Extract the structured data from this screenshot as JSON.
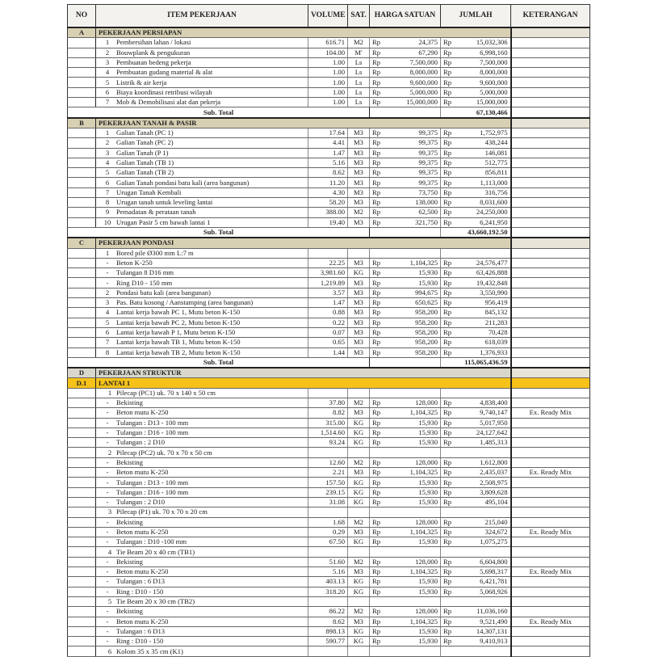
{
  "columns": {
    "no": "NO",
    "item": "ITEM PEKERJAAN",
    "volume": "VOLUME",
    "sat": "SAT.",
    "harga": "HARGA SATUAN",
    "jumlah": "JUMLAH",
    "ket": "KETERANGAN"
  },
  "currency": "Rp",
  "subtotal_label": "Sub. Total",
  "colors": {
    "section": "#d8d0b3",
    "subsection": "#f6c21a"
  },
  "rows": [
    {
      "type": "section",
      "no": "A",
      "item": "PEKERJAAN PERSIAPAN"
    },
    {
      "type": "item",
      "no": "1",
      "item": "Pembersihan lahan / lokasi",
      "volume": "616.71",
      "sat": "M2",
      "harga": "24,375",
      "jumlah": "15,032,306"
    },
    {
      "type": "item",
      "no": "2",
      "item": "Bouwplank & pengukuran",
      "volume": "104.00",
      "sat": "M'",
      "harga": "67,290",
      "jumlah": "6,998,160"
    },
    {
      "type": "item",
      "no": "3",
      "item": "Pembuatan bedeng pekerja",
      "volume": "1.00",
      "sat": "Ls",
      "harga": "7,500,000",
      "jumlah": "7,500,000"
    },
    {
      "type": "item",
      "no": "4",
      "item": "Pembuatan gudang material & alat",
      "volume": "1.00",
      "sat": "Ls",
      "harga": "8,000,000",
      "jumlah": "8,000,000"
    },
    {
      "type": "item",
      "no": "5",
      "item": "Listrik & air kerja",
      "volume": "1.00",
      "sat": "Ls",
      "harga": "9,600,000",
      "jumlah": "9,600,000"
    },
    {
      "type": "item",
      "no": "6",
      "item": "Biaya koordinasi retribusi wilayah",
      "volume": "1.00",
      "sat": "Ls",
      "harga": "5,000,000",
      "jumlah": "5,000,000"
    },
    {
      "type": "item",
      "no": "7",
      "item": "Mob & Demobilisasi alat dan pekerja",
      "volume": "1.00",
      "sat": "Ls",
      "harga": "15,000,000",
      "jumlah": "15,000,000"
    },
    {
      "type": "subtotal",
      "jumlah": "67,130,466"
    },
    {
      "type": "section",
      "no": "B",
      "item": "PEKERJAAN TANAH & PASIR"
    },
    {
      "type": "item",
      "no": "1",
      "item": "Galian Tanah (PC 1)",
      "volume": "17.64",
      "sat": "M3",
      "harga": "99,375",
      "jumlah": "1,752,975"
    },
    {
      "type": "item",
      "no": "2",
      "item": "Galian Tanah (PC 2)",
      "volume": "4.41",
      "sat": "M3",
      "harga": "99,375",
      "jumlah": "438,244"
    },
    {
      "type": "item",
      "no": "3",
      "item": "Galian Tanah (P 1)",
      "volume": "1.47",
      "sat": "M3",
      "harga": "99,375",
      "jumlah": "146,081"
    },
    {
      "type": "item",
      "no": "4",
      "item": "Galian Tanah (TB 1)",
      "volume": "5.16",
      "sat": "M3",
      "harga": "99,375",
      "jumlah": "512,775"
    },
    {
      "type": "item",
      "no": "5",
      "item": "Galian Tanah (TB 2)",
      "volume": "8.62",
      "sat": "M3",
      "harga": "99,375",
      "jumlah": "856,811"
    },
    {
      "type": "item",
      "no": "6",
      "item": "Galian Tanah pondasi batu kali (area bangunan)",
      "volume": "11.20",
      "sat": "M3",
      "harga": "99,375",
      "jumlah": "1,113,000"
    },
    {
      "type": "item",
      "no": "7",
      "item": "Urugan Tanah Kembali",
      "volume": "4.30",
      "sat": "M3",
      "harga": "73,750",
      "jumlah": "316,756"
    },
    {
      "type": "item",
      "no": "8",
      "item": "Urugan tanah untuk leveling lantai",
      "volume": "58.20",
      "sat": "M3",
      "harga": "138,000",
      "jumlah": "8,031,600"
    },
    {
      "type": "item",
      "no": "9",
      "item": "Pemadatan & perataan tanah",
      "volume": "388.00",
      "sat": "M2",
      "harga": "62,500",
      "jumlah": "24,250,000"
    },
    {
      "type": "item",
      "no": "10",
      "item": "Urugan Pasir 5 cm bawah lantai 1",
      "volume": "19.40",
      "sat": "M3",
      "harga": "321,750",
      "jumlah": "6,241,950"
    },
    {
      "type": "subtotal",
      "jumlah": "43,660,192.50"
    },
    {
      "type": "section",
      "no": "C",
      "item": "PEKERJAAN PONDASI"
    },
    {
      "type": "group",
      "no": "1",
      "item": "Bored pile Ø300 mm L:7 m"
    },
    {
      "type": "item",
      "no": "-",
      "item": "Beton K-250",
      "volume": "22.25",
      "sat": "M3",
      "harga": "1,104,325",
      "jumlah": "24,576,477"
    },
    {
      "type": "item",
      "no": "-",
      "item": "Tulangan 8 D16 mm",
      "volume": "3,981.60",
      "sat": "KG",
      "harga": "15,930",
      "jumlah": "63,426,888"
    },
    {
      "type": "item",
      "no": "-",
      "item": "Ring D10 - 150 mm",
      "volume": "1,219.89",
      "sat": "M3",
      "harga": "15,930",
      "jumlah": "19,432,848"
    },
    {
      "type": "item",
      "no": "2",
      "item": "Pondasi batu kali (area bangunan)",
      "volume": "3.57",
      "sat": "M3",
      "harga": "994,675",
      "jumlah": "3,550,990"
    },
    {
      "type": "item",
      "no": "3",
      "item": "Pas. Batu kosong / Aanstamping (area bangunan)",
      "volume": "1.47",
      "sat": "M3",
      "harga": "650,625",
      "jumlah": "956,419"
    },
    {
      "type": "item",
      "no": "4",
      "item": "Lantai kerja bawah PC 1, Mutu beton K-150",
      "volume": "0.88",
      "sat": "M3",
      "harga": "958,200",
      "jumlah": "845,132"
    },
    {
      "type": "item",
      "no": "5",
      "item": "Lantai kerja bawah PC 2, Mutu beton K-150",
      "volume": "0.22",
      "sat": "M3",
      "harga": "958,200",
      "jumlah": "211,283"
    },
    {
      "type": "item",
      "no": "6",
      "item": "Lantai kerja bawah P 1, Mutu beton K-150",
      "volume": "0.07",
      "sat": "M3",
      "harga": "958,200",
      "jumlah": "70,428"
    },
    {
      "type": "item",
      "no": "7",
      "item": "Lantai kerja bawah TB 1, Mutu beton K-150",
      "volume": "0.65",
      "sat": "M3",
      "harga": "958,200",
      "jumlah": "618,039"
    },
    {
      "type": "item",
      "no": "8",
      "item": "Lantai kerja bawah TB 2, Mutu beton K-150",
      "volume": "1.44",
      "sat": "M3",
      "harga": "958,200",
      "jumlah": "1,376,933"
    },
    {
      "type": "subtotal",
      "jumlah": "115,065,436.59"
    },
    {
      "type": "section-d",
      "no": "D",
      "item": "PEKERJAAN STRUKTUR"
    },
    {
      "type": "subsection",
      "no": "D.1",
      "item": "LANTAI 1"
    },
    {
      "type": "group2",
      "no": "1",
      "item": "Pilecap (PC1) uk. 70 x 140 x 50 cm"
    },
    {
      "type": "item",
      "no": "-",
      "item": "Bekisting",
      "volume": "37.80",
      "sat": "M2",
      "harga": "128,000",
      "jumlah": "4,838,400"
    },
    {
      "type": "item",
      "no": "-",
      "item": "Beton mutu K-250",
      "volume": "8.82",
      "sat": "M3",
      "harga": "1,104,325",
      "jumlah": "9,740,147",
      "ket": "Ex. Ready Mix"
    },
    {
      "type": "item",
      "no": "-",
      "item": "Tulangan : D13 - 100 mm",
      "volume": "315.00",
      "sat": "KG",
      "harga": "15,930",
      "jumlah": "5,017,950"
    },
    {
      "type": "item",
      "no": "-",
      "item": "Tulangan : D16 - 100 mm",
      "volume": "1,514.60",
      "sat": "KG",
      "harga": "15,930",
      "jumlah": "24,127,642"
    },
    {
      "type": "item",
      "no": "-",
      "item": "Tulangan : 2 D10",
      "volume": "93.24",
      "sat": "KG",
      "harga": "15,930",
      "jumlah": "1,485,313"
    },
    {
      "type": "group2",
      "no": "2",
      "item": "Pilecap (PC2) uk. 70 x 70 x 50 cm"
    },
    {
      "type": "item",
      "no": "-",
      "item": "Bekisting",
      "volume": "12.60",
      "sat": "M2",
      "harga": "128,000",
      "jumlah": "1,612,800"
    },
    {
      "type": "item",
      "no": "-",
      "item": "Beton mutu K-250",
      "volume": "2.21",
      "sat": "M3",
      "harga": "1,104,325",
      "jumlah": "2,435,037",
      "ket": "Ex. Ready Mix"
    },
    {
      "type": "item",
      "no": "-",
      "item": "Tulangan : D13 - 100 mm",
      "volume": "157.50",
      "sat": "KG",
      "harga": "15,930",
      "jumlah": "2,508,975"
    },
    {
      "type": "item",
      "no": "-",
      "item": "Tulangan : D16 - 100 mm",
      "volume": "239.15",
      "sat": "KG",
      "harga": "15,930",
      "jumlah": "3,809,628"
    },
    {
      "type": "item",
      "no": "-",
      "item": "Tulangan : 2 D10",
      "volume": "31.08",
      "sat": "KG",
      "harga": "15,930",
      "jumlah": "495,104"
    },
    {
      "type": "group2",
      "no": "3",
      "item": "Pilecap (P1) uk. 70 x 70 x 20 cm"
    },
    {
      "type": "item",
      "no": "-",
      "item": "Bekisting",
      "volume": "1.68",
      "sat": "M2",
      "harga": "128,000",
      "jumlah": "215,040"
    },
    {
      "type": "item",
      "no": "-",
      "item": "Beton mutu K-250",
      "volume": "0.29",
      "sat": "M3",
      "harga": "1,104,325",
      "jumlah": "324,672",
      "ket": "Ex. Ready Mix"
    },
    {
      "type": "item",
      "no": "-",
      "item": "Tulangan : D10 -100 mm",
      "volume": "67.50",
      "sat": "KG",
      "harga": "15,930",
      "jumlah": "1,075,275"
    },
    {
      "type": "group2",
      "no": "4",
      "item": "Tie Beam 20 x 40 cm (TB1)"
    },
    {
      "type": "item",
      "no": "-",
      "item": "Bekisting",
      "volume": "51.60",
      "sat": "M2",
      "harga": "128,000",
      "jumlah": "6,604,800"
    },
    {
      "type": "item",
      "no": "-",
      "item": "Beton mutu K-250",
      "volume": "5.16",
      "sat": "M3",
      "harga": "1,104,325",
      "jumlah": "5,698,317",
      "ket": "Ex. Ready Mix"
    },
    {
      "type": "item",
      "no": "-",
      "item": "Tulangan : 6 D13",
      "volume": "403.13",
      "sat": "KG",
      "harga": "15,930",
      "jumlah": "6,421,781"
    },
    {
      "type": "item",
      "no": "-",
      "item": "Ring : D10 - 150",
      "volume": "318.20",
      "sat": "KG",
      "harga": "15,930",
      "jumlah": "5,068,926"
    },
    {
      "type": "group2",
      "no": "5",
      "item": "Tie Beam 20 x 30 cm (TB2)"
    },
    {
      "type": "item",
      "no": "-",
      "item": "Bekisting",
      "volume": "86.22",
      "sat": "M2",
      "harga": "128,000",
      "jumlah": "11,036,160"
    },
    {
      "type": "item",
      "no": "-",
      "item": "Beton mutu K-250",
      "volume": "8.62",
      "sat": "M3",
      "harga": "1,104,325",
      "jumlah": "9,521,490",
      "ket": "Ex. Ready Mix"
    },
    {
      "type": "item",
      "no": "-",
      "item": "Tulangan : 6 D13",
      "volume": "898.13",
      "sat": "KG",
      "harga": "15,930",
      "jumlah": "14,307,131"
    },
    {
      "type": "item",
      "no": "-",
      "item": "Ring : D10 - 150",
      "volume": "590.77",
      "sat": "KG",
      "harga": "15,930",
      "jumlah": "9,410,913"
    },
    {
      "type": "group2",
      "no": "6",
      "item": "Kolom 35 x 35 cm (K1)"
    }
  ]
}
